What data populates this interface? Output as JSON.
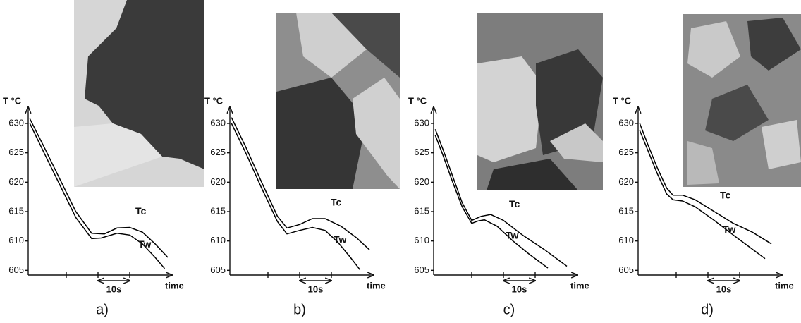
{
  "chart_data": [
    {
      "type": "line",
      "caption": "a)",
      "ylabel": "T °C",
      "xlabel": "time",
      "scale_bar_label": "10s",
      "xlim": [
        0,
        44
      ],
      "xticks": [
        12,
        22,
        32
      ],
      "ylim": [
        604.2,
        631.8
      ],
      "yticks": [
        605,
        610,
        615,
        620,
        625,
        630
      ],
      "series": [
        {
          "name": "Tc",
          "color": "#000000",
          "x": [
            0.5,
            5,
            10,
            15,
            20,
            24,
            28,
            32,
            36,
            40,
            44
          ],
          "values": [
            630.8,
            626,
            620.5,
            615,
            611.3,
            611.2,
            612.2,
            612.3,
            611.5,
            609.5,
            607.2
          ]
        },
        {
          "name": "Tw",
          "color": "#000000",
          "x": [
            0.5,
            5,
            10,
            15,
            20,
            23,
            28,
            32,
            36,
            40,
            43
          ],
          "values": [
            630,
            625,
            619.5,
            614,
            610.4,
            610.5,
            611.3,
            611,
            609.5,
            607.2,
            605.3
          ]
        }
      ]
    },
    {
      "type": "line",
      "caption": "b)",
      "ylabel": "T °C",
      "xlabel": "time",
      "scale_bar_label": "10s",
      "xlim": [
        0,
        44
      ],
      "xticks": [
        12,
        22,
        32
      ],
      "ylim": [
        604.2,
        631.8
      ],
      "yticks": [
        605,
        610,
        615,
        620,
        625,
        630
      ],
      "series": [
        {
          "name": "Tc",
          "color": "#000000",
          "x": [
            0.5,
            5,
            10,
            15,
            18,
            22,
            26,
            30,
            35,
            40,
            44
          ],
          "values": [
            631,
            626,
            620,
            614.2,
            612.2,
            612.8,
            613.8,
            613.8,
            612.5,
            610.5,
            608.5
          ]
        },
        {
          "name": "Tw",
          "color": "#000000",
          "x": [
            0.5,
            5,
            10,
            15,
            18,
            22,
            26,
            30,
            34,
            38,
            41
          ],
          "values": [
            630,
            625,
            619,
            613.3,
            611.2,
            611.8,
            612.3,
            611.8,
            609.8,
            607.2,
            605.1
          ]
        }
      ]
    },
    {
      "type": "line",
      "caption": "c)",
      "ylabel": "T °C",
      "xlabel": "time",
      "scale_bar_label": "10s",
      "xlim": [
        0,
        44
      ],
      "xticks": [
        12,
        22,
        32
      ],
      "ylim": [
        604.2,
        631.8
      ],
      "yticks": [
        605,
        610,
        615,
        620,
        625,
        630
      ],
      "series": [
        {
          "name": "Tc",
          "color": "#000000",
          "x": [
            0.5,
            3,
            6,
            9,
            12,
            15,
            18,
            22,
            28,
            35,
            42
          ],
          "values": [
            629,
            625.5,
            621,
            616.5,
            613.5,
            614.2,
            614.5,
            613.5,
            611,
            608.5,
            605.7
          ]
        },
        {
          "name": "Tw",
          "color": "#000000",
          "x": [
            0.5,
            3,
            6,
            9,
            12,
            14,
            16,
            20,
            25,
            30,
            36
          ],
          "values": [
            628,
            624.5,
            620,
            615.8,
            613,
            613.4,
            613.6,
            612.5,
            610,
            607.8,
            605.4
          ]
        }
      ]
    },
    {
      "type": "line",
      "caption": "d)",
      "ylabel": "T °C",
      "xlabel": "time",
      "scale_bar_label": "10s",
      "xlim": [
        0,
        44
      ],
      "xticks": [
        12,
        22,
        32
      ],
      "ylim": [
        604.2,
        631.8
      ],
      "yticks": [
        605,
        610,
        615,
        620,
        625,
        630
      ],
      "series": [
        {
          "name": "Tc",
          "color": "#000000",
          "x": [
            0.5,
            3,
            6,
            9,
            11,
            14,
            18,
            24,
            30,
            36,
            42
          ],
          "values": [
            630,
            626.5,
            622.5,
            619,
            617.8,
            617.8,
            617,
            615,
            613,
            611.5,
            609.5
          ]
        },
        {
          "name": "Tw",
          "color": "#000000",
          "x": [
            0.5,
            3,
            6,
            9,
            11,
            14,
            18,
            24,
            30,
            35,
            40
          ],
          "values": [
            628.8,
            625.5,
            621.5,
            618,
            617,
            616.8,
            615.8,
            613.5,
            611,
            609,
            607
          ]
        }
      ]
    }
  ]
}
